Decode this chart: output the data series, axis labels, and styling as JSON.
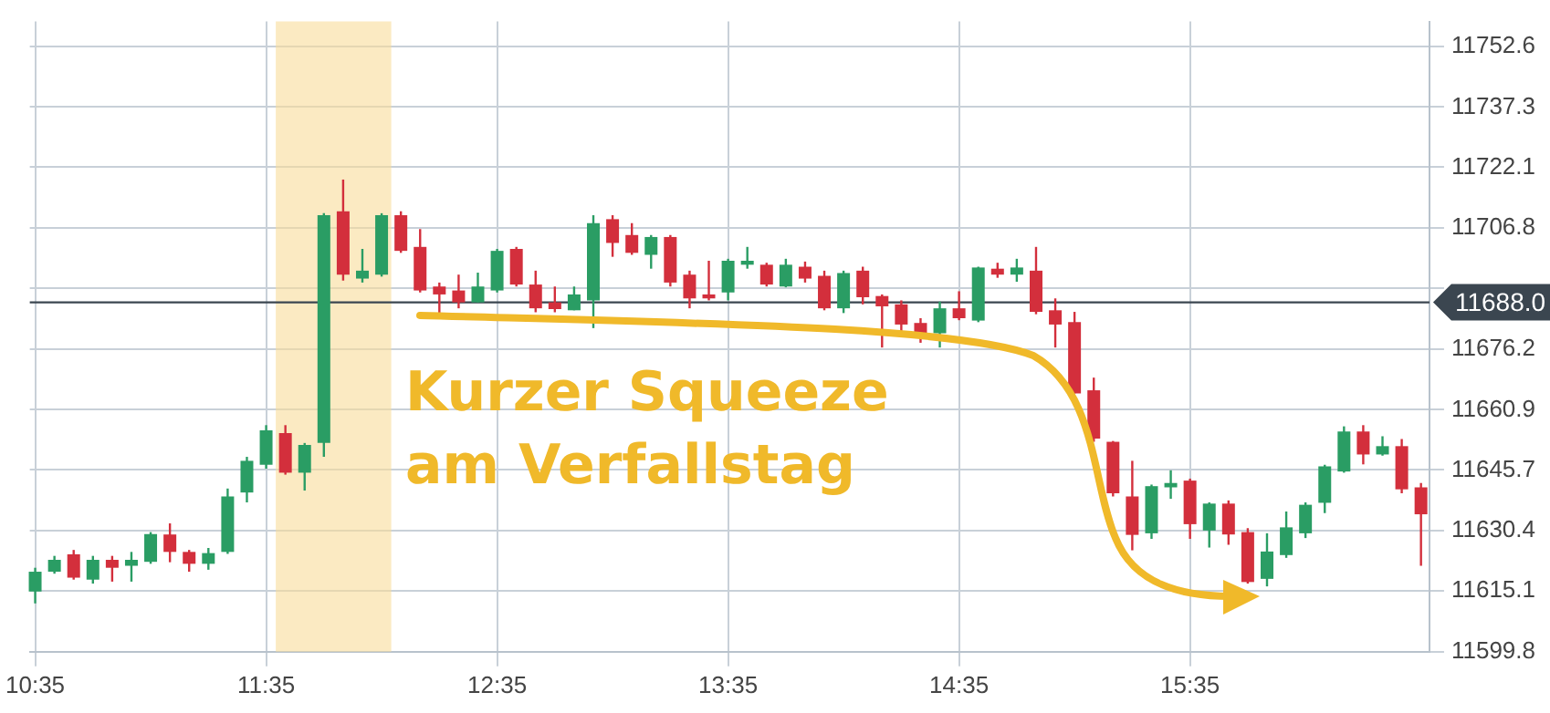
{
  "chart_data": {
    "type": "candlestick",
    "x": [
      10.5833,
      10.6667,
      10.75,
      10.8333,
      10.9167,
      11,
      11.0833,
      11.1667,
      11.25,
      11.3333,
      11.4167,
      11.5,
      11.5833,
      11.6667,
      11.75,
      11.8333,
      11.9167,
      12,
      12.0833,
      12.1667,
      12.25,
      12.3333,
      12.4167,
      12.5,
      12.5833,
      12.6667,
      12.75,
      12.8333,
      12.9167,
      13,
      13.0833,
      13.1667,
      13.25,
      13.3333,
      13.4167,
      13.5,
      13.5833,
      13.6667,
      13.75,
      13.8333,
      13.9167,
      14,
      14.0833,
      14.1667,
      14.25,
      14.3333,
      14.4167,
      14.5,
      14.5833,
      14.6667,
      14.75,
      14.8333,
      14.9167,
      15,
      15.0833,
      15.1667,
      15.25,
      15.3333,
      15.4167,
      15.5,
      15.5833,
      15.6667,
      15.75,
      15.8333,
      15.9167,
      16,
      16.0833,
      16.1667,
      16.25,
      16.3333,
      16.4167,
      16.5,
      16.5833
    ],
    "ohlc": [
      [
        11615,
        11621,
        11612,
        11620
      ],
      [
        11620,
        11624,
        11619.5,
        11623
      ],
      [
        11624.4,
        11625.5,
        11618,
        11618.5
      ],
      [
        11618,
        11624,
        11617,
        11623
      ],
      [
        11623,
        11624,
        11617.5,
        11621
      ],
      [
        11621.5,
        11625,
        11617.5,
        11623
      ],
      [
        11622.5,
        11630,
        11622,
        11629.5
      ],
      [
        11629.4,
        11632.2,
        11622.4,
        11625
      ],
      [
        11625,
        11625.5,
        11620,
        11622
      ],
      [
        11622,
        11626,
        11620.5,
        11624.7
      ],
      [
        11625,
        11641,
        11624.5,
        11639
      ],
      [
        11640,
        11649,
        11637.5,
        11648
      ],
      [
        11647,
        11657,
        11646,
        11655.7
      ],
      [
        11655,
        11657,
        11644.5,
        11645
      ],
      [
        11645,
        11652.5,
        11640.5,
        11652
      ],
      [
        11652.5,
        11710.5,
        11649,
        11710
      ],
      [
        11711,
        11719,
        11693.5,
        11695
      ],
      [
        11694,
        11701.5,
        11693,
        11696
      ],
      [
        11695,
        11710.5,
        11694.5,
        11710
      ],
      [
        11710,
        11711,
        11700.5,
        11701
      ],
      [
        11702,
        11706.5,
        11690.5,
        11691
      ],
      [
        11692,
        11693,
        11685,
        11690
      ],
      [
        11691,
        11695,
        11686.5,
        11688
      ],
      [
        11688,
        11695.5,
        11688,
        11692
      ],
      [
        11691,
        11701.5,
        11690.5,
        11701
      ],
      [
        11701.5,
        11702,
        11692,
        11692.5
      ],
      [
        11692.5,
        11696,
        11685.5,
        11686.5
      ],
      [
        11688,
        11692,
        11685.5,
        11686.3
      ],
      [
        11686,
        11692,
        11686,
        11690
      ],
      [
        11688.5,
        11710,
        11681.5,
        11708
      ],
      [
        11709,
        11710,
        11699.5,
        11703
      ],
      [
        11705,
        11708,
        11700,
        11700.5
      ],
      [
        11700,
        11705,
        11696.5,
        11704.5
      ],
      [
        11704.5,
        11705,
        11692,
        11693
      ],
      [
        11695,
        11696,
        11686.5,
        11689
      ],
      [
        11690,
        11698.5,
        11688.5,
        11689
      ],
      [
        11690.5,
        11699,
        11688.5,
        11698.5
      ],
      [
        11697.5,
        11702,
        11696.5,
        11698.5
      ],
      [
        11697.5,
        11698,
        11692,
        11692.5
      ],
      [
        11692,
        11699,
        11691.8,
        11697.5
      ],
      [
        11697,
        11698.3,
        11693,
        11694
      ],
      [
        11694.7,
        11696,
        11686,
        11686.5
      ],
      [
        11686.5,
        11696,
        11685.3,
        11695.4
      ],
      [
        11696,
        11697,
        11687.5,
        11689.3
      ],
      [
        11689.6,
        11690,
        11676.6,
        11687
      ],
      [
        11687.5,
        11688.5,
        11680,
        11682.4
      ],
      [
        11682.8,
        11684,
        11677.8,
        11679.5
      ],
      [
        11680.2,
        11688.2,
        11676.6,
        11686.5
      ],
      [
        11686.5,
        11690.8,
        11683.5,
        11684
      ],
      [
        11683.4,
        11697,
        11683,
        11696.8
      ],
      [
        11696.5,
        11698,
        11694.2,
        11695
      ],
      [
        11695,
        11699,
        11693.2,
        11696.8
      ],
      [
        11696,
        11702,
        11685,
        11685.6
      ],
      [
        11686,
        11689,
        11676.6,
        11682.4
      ],
      [
        11683,
        11685.6,
        11665,
        11665
      ],
      [
        11665.8,
        11669,
        11652.8,
        11653.6
      ],
      [
        11652.8,
        11653,
        11639,
        11639.8
      ],
      [
        11639,
        11648,
        11625.4,
        11629.3
      ],
      [
        11629.7,
        11642,
        11628.3,
        11641.6
      ],
      [
        11641.3,
        11645.6,
        11638.4,
        11642.4
      ],
      [
        11643,
        11643.5,
        11628.3,
        11632
      ],
      [
        11630.4,
        11637.5,
        11626.1,
        11637.2
      ],
      [
        11637.2,
        11638,
        11626.8,
        11629.4
      ],
      [
        11630,
        11631,
        11617,
        11617.4
      ],
      [
        11618.2,
        11629.7,
        11616.3,
        11625.1
      ],
      [
        11624.2,
        11635.2,
        11623.5,
        11631.2
      ],
      [
        11629.7,
        11637.5,
        11628.5,
        11636.9
      ],
      [
        11637.4,
        11647,
        11634.8,
        11646.6
      ],
      [
        11645.3,
        11656.7,
        11645,
        11655.4
      ],
      [
        11655.4,
        11657,
        11647.1,
        11649.6
      ],
      [
        11649.6,
        11654.2,
        11649.3,
        11651.7
      ],
      [
        11651.7,
        11653.5,
        11639.8,
        11640.8
      ],
      [
        11641.3,
        11642.4,
        11621.5,
        11634.5
      ]
    ],
    "colors": [
      "#2a9d64",
      "#2a9d64",
      "#d32f3c",
      "#2a9d64",
      "#d32f3c",
      "#2a9d64",
      "#2a9d64",
      "#d32f3c",
      "#d32f3c",
      "#2a9d64",
      "#2a9d64",
      "#2a9d64",
      "#2a9d64",
      "#d32f3c",
      "#2a9d64",
      "#2a9d64",
      "#d32f3c",
      "#2a9d64",
      "#2a9d64",
      "#d32f3c",
      "#d32f3c",
      "#d32f3c",
      "#d32f3c",
      "#2a9d64",
      "#2a9d64",
      "#d32f3c",
      "#d32f3c",
      "#d32f3c",
      "#2a9d64",
      "#2a9d64",
      "#d32f3c",
      "#d32f3c",
      "#2a9d64",
      "#d32f3c",
      "#d32f3c",
      "#d32f3c",
      "#2a9d64",
      "#2a9d64",
      "#d32f3c",
      "#2a9d64",
      "#d32f3c",
      "#d32f3c",
      "#2a9d64",
      "#d32f3c",
      "#d32f3c",
      "#d32f3c",
      "#d32f3c",
      "#2a9d64",
      "#d32f3c",
      "#2a9d64",
      "#d32f3c",
      "#2a9d64",
      "#d32f3c",
      "#d32f3c",
      "#d32f3c",
      "#d32f3c",
      "#d32f3c",
      "#d32f3c",
      "#2a9d64",
      "#2a9d64",
      "#d32f3c",
      "#2a9d64",
      "#d32f3c",
      "#d32f3c",
      "#2a9d64",
      "#2a9d64",
      "#2a9d64",
      "#2a9d64",
      "#2a9d64",
      "#d32f3c",
      "#2a9d64",
      "#d32f3c",
      "#d32f3c"
    ],
    "xlim": [
      10.56,
      16.62
    ],
    "xticks": [
      {
        "value": 10.5833,
        "label": "10:35"
      },
      {
        "value": 11.5833,
        "label": "11:35"
      },
      {
        "value": 12.5833,
        "label": "12:35"
      },
      {
        "value": 13.5833,
        "label": "13:35"
      },
      {
        "value": 14.5833,
        "label": "14:35"
      },
      {
        "value": 15.5833,
        "label": "15:35"
      }
    ],
    "ylim": [
      11599.8,
      11758.9
    ],
    "yticks": [
      11599.8,
      11615.1,
      11630.4,
      11645.7,
      11660.9,
      11676.2,
      {
        "value": 11691.5,
        "label": null
      },
      11706.8,
      11722.1,
      11737.3,
      11752.6
    ],
    "grid": true,
    "ref_lines": [
      {
        "axis": "y",
        "value": 11688.0,
        "label": "11688.0",
        "color": "#3b4650"
      }
    ],
    "bands": [
      {
        "axis": "x",
        "from": 11.625,
        "to": 12.125,
        "color": "#f8dc9a"
      }
    ],
    "annotations": [
      "Kurzer Squeeze",
      "am Verfallstag"
    ]
  }
}
